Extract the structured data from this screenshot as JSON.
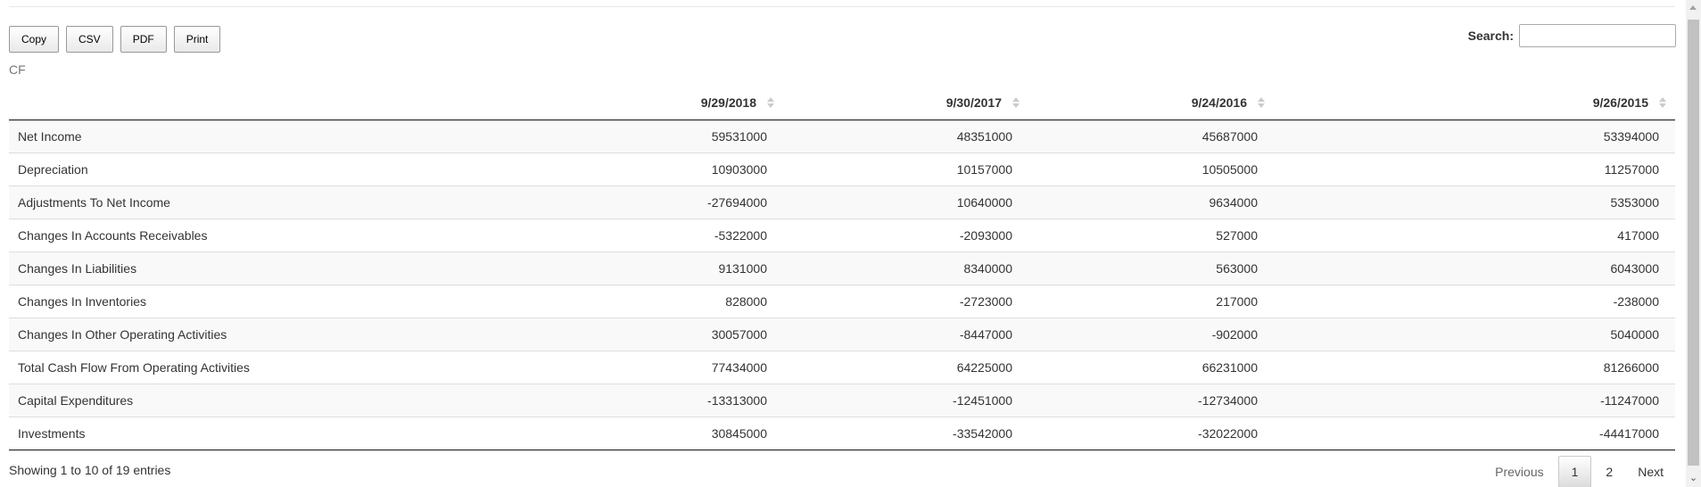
{
  "toolbar": {
    "copy_label": "Copy",
    "csv_label": "CSV",
    "pdf_label": "PDF",
    "print_label": "Print"
  },
  "search": {
    "label": "Search:",
    "value": "",
    "placeholder": ""
  },
  "caption": "CF",
  "table": {
    "columns": [
      "",
      "9/29/2018",
      "9/30/2017",
      "9/24/2016",
      "9/26/2015"
    ],
    "rows": [
      {
        "label": "Net Income",
        "values": [
          "59531000",
          "48351000",
          "45687000",
          "53394000"
        ]
      },
      {
        "label": "Depreciation",
        "values": [
          "10903000",
          "10157000",
          "10505000",
          "11257000"
        ]
      },
      {
        "label": "Adjustments To Net Income",
        "values": [
          "-27694000",
          "10640000",
          "9634000",
          "5353000"
        ]
      },
      {
        "label": "Changes In Accounts Receivables",
        "values": [
          "-5322000",
          "-2093000",
          "527000",
          "417000"
        ]
      },
      {
        "label": "Changes In Liabilities",
        "values": [
          "9131000",
          "8340000",
          "563000",
          "6043000"
        ]
      },
      {
        "label": "Changes In Inventories",
        "values": [
          "828000",
          "-2723000",
          "217000",
          "-238000"
        ]
      },
      {
        "label": "Changes In Other Operating Activities",
        "values": [
          "30057000",
          "-8447000",
          "-902000",
          "5040000"
        ]
      },
      {
        "label": "Total Cash Flow From Operating Activities",
        "values": [
          "77434000",
          "64225000",
          "66231000",
          "81266000"
        ]
      },
      {
        "label": "Capital Expenditures",
        "values": [
          "-13313000",
          "-12451000",
          "-12734000",
          "-11247000"
        ]
      },
      {
        "label": "Investments",
        "values": [
          "30845000",
          "-33542000",
          "-32022000",
          "-44417000"
        ]
      }
    ]
  },
  "info": "Showing 1 to 10 of 19 entries",
  "pagination": {
    "previous": "Previous",
    "pages": [
      "1",
      "2"
    ],
    "current": "1",
    "next": "Next"
  },
  "icons": {
    "sort": "sort-both-icon",
    "scroll_down": "chevron-down-icon"
  }
}
